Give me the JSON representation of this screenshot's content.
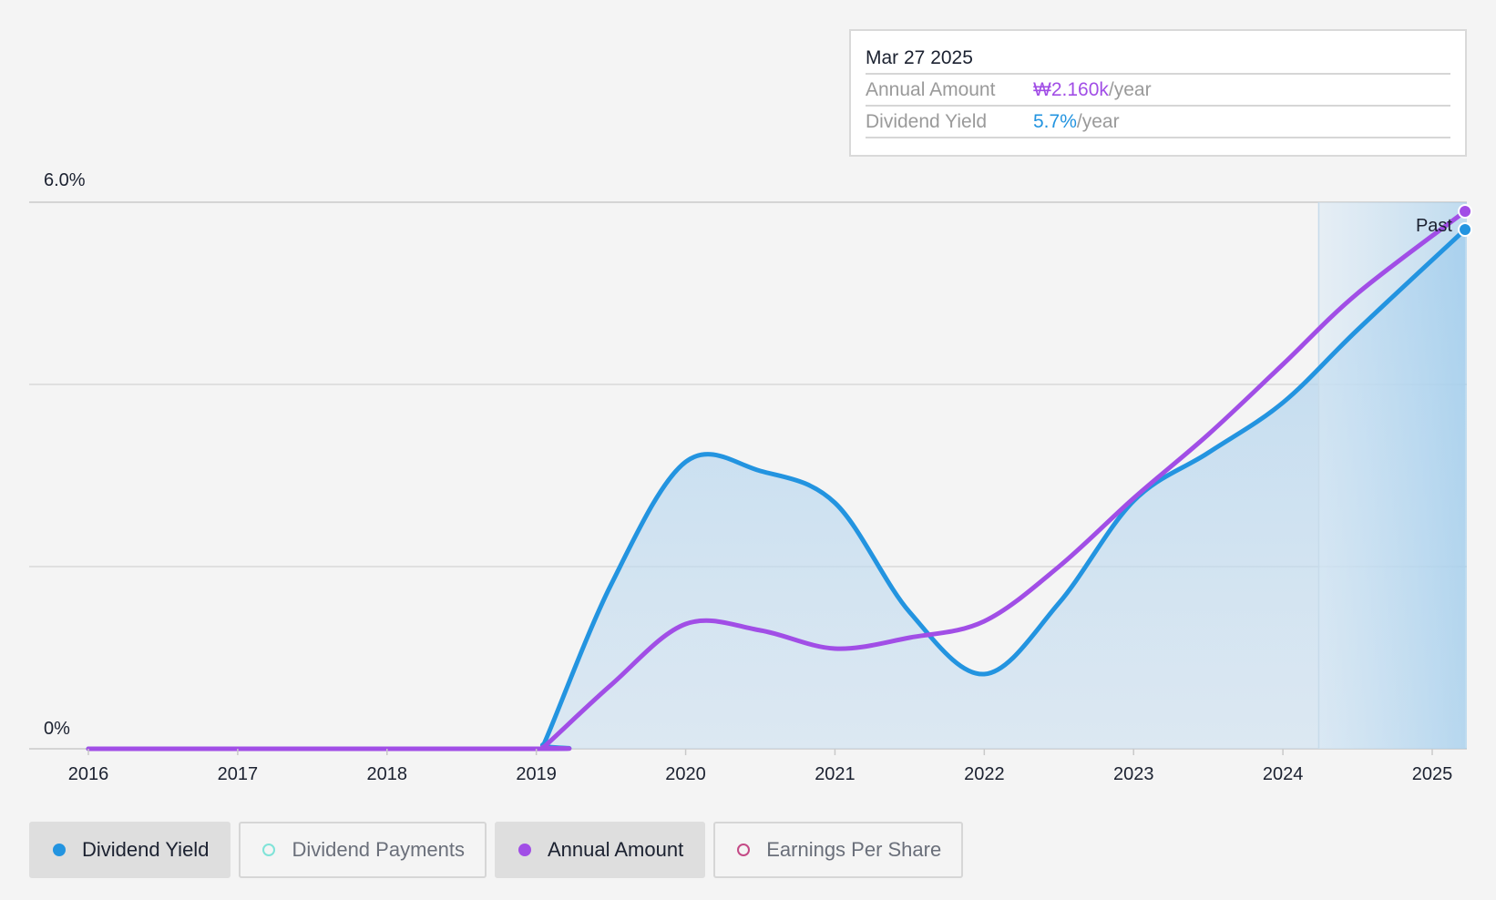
{
  "tooltip": {
    "date": "Mar 27 2025",
    "annual_amount_label": "Annual Amount",
    "annual_amount_value": "₩2.160k",
    "annual_amount_unit": "/year",
    "dividend_yield_label": "Dividend Yield",
    "dividend_yield_value": "5.7%",
    "dividend_yield_unit": "/year"
  },
  "colors": {
    "dividend_yield": "#2394e0",
    "annual_amount": "#a14ee6",
    "dividend_payments": "#7fe3d8",
    "earnings_per_share": "#c44a86"
  },
  "legend": [
    {
      "label": "Dividend Yield",
      "active": true,
      "dot": "filled",
      "color": "#2394e0"
    },
    {
      "label": "Dividend Payments",
      "active": false,
      "dot": "hollow",
      "color": "#7fe3d8"
    },
    {
      "label": "Annual Amount",
      "active": true,
      "dot": "filled",
      "color": "#a14ee6"
    },
    {
      "label": "Earnings Per Share",
      "active": false,
      "dot": "hollow",
      "color": "#c44a86"
    }
  ],
  "chart_data": {
    "type": "line",
    "y_top_label": "6.0%",
    "y_bottom_label": "0%",
    "ylim": [
      0,
      6.0
    ],
    "xlim": [
      2015.6,
      2025.24
    ],
    "x_ticks": [
      "2016",
      "2017",
      "2018",
      "2019",
      "2020",
      "2021",
      "2022",
      "2023",
      "2024",
      "2025"
    ],
    "past_label": "Past",
    "past_region_start": 2024.24,
    "grid": true,
    "series": [
      {
        "name": "Dividend Yield",
        "area": true,
        "points": [
          [
            2016,
            0
          ],
          [
            2019,
            0
          ],
          [
            2019.05,
            0.05
          ],
          [
            2019.5,
            1.8
          ],
          [
            2020,
            3.15
          ],
          [
            2020.5,
            3.05
          ],
          [
            2021,
            2.7
          ],
          [
            2021.5,
            1.5
          ],
          [
            2022,
            0.82
          ],
          [
            2022.5,
            1.6
          ],
          [
            2023,
            2.72
          ],
          [
            2023.5,
            3.25
          ],
          [
            2024,
            3.8
          ],
          [
            2024.5,
            4.6
          ],
          [
            2025.22,
            5.7
          ]
        ]
      },
      {
        "name": "Annual Amount",
        "area": false,
        "points": [
          [
            2016,
            0
          ],
          [
            2019,
            0
          ],
          [
            2019.05,
            0.02
          ],
          [
            2019.5,
            0.7
          ],
          [
            2020,
            1.37
          ],
          [
            2020.5,
            1.3
          ],
          [
            2021,
            1.1
          ],
          [
            2021.5,
            1.22
          ],
          [
            2022,
            1.4
          ],
          [
            2022.5,
            2.0
          ],
          [
            2023,
            2.75
          ],
          [
            2023.5,
            3.45
          ],
          [
            2024,
            4.22
          ],
          [
            2024.5,
            5.0
          ],
          [
            2025.22,
            5.9
          ]
        ]
      }
    ]
  }
}
